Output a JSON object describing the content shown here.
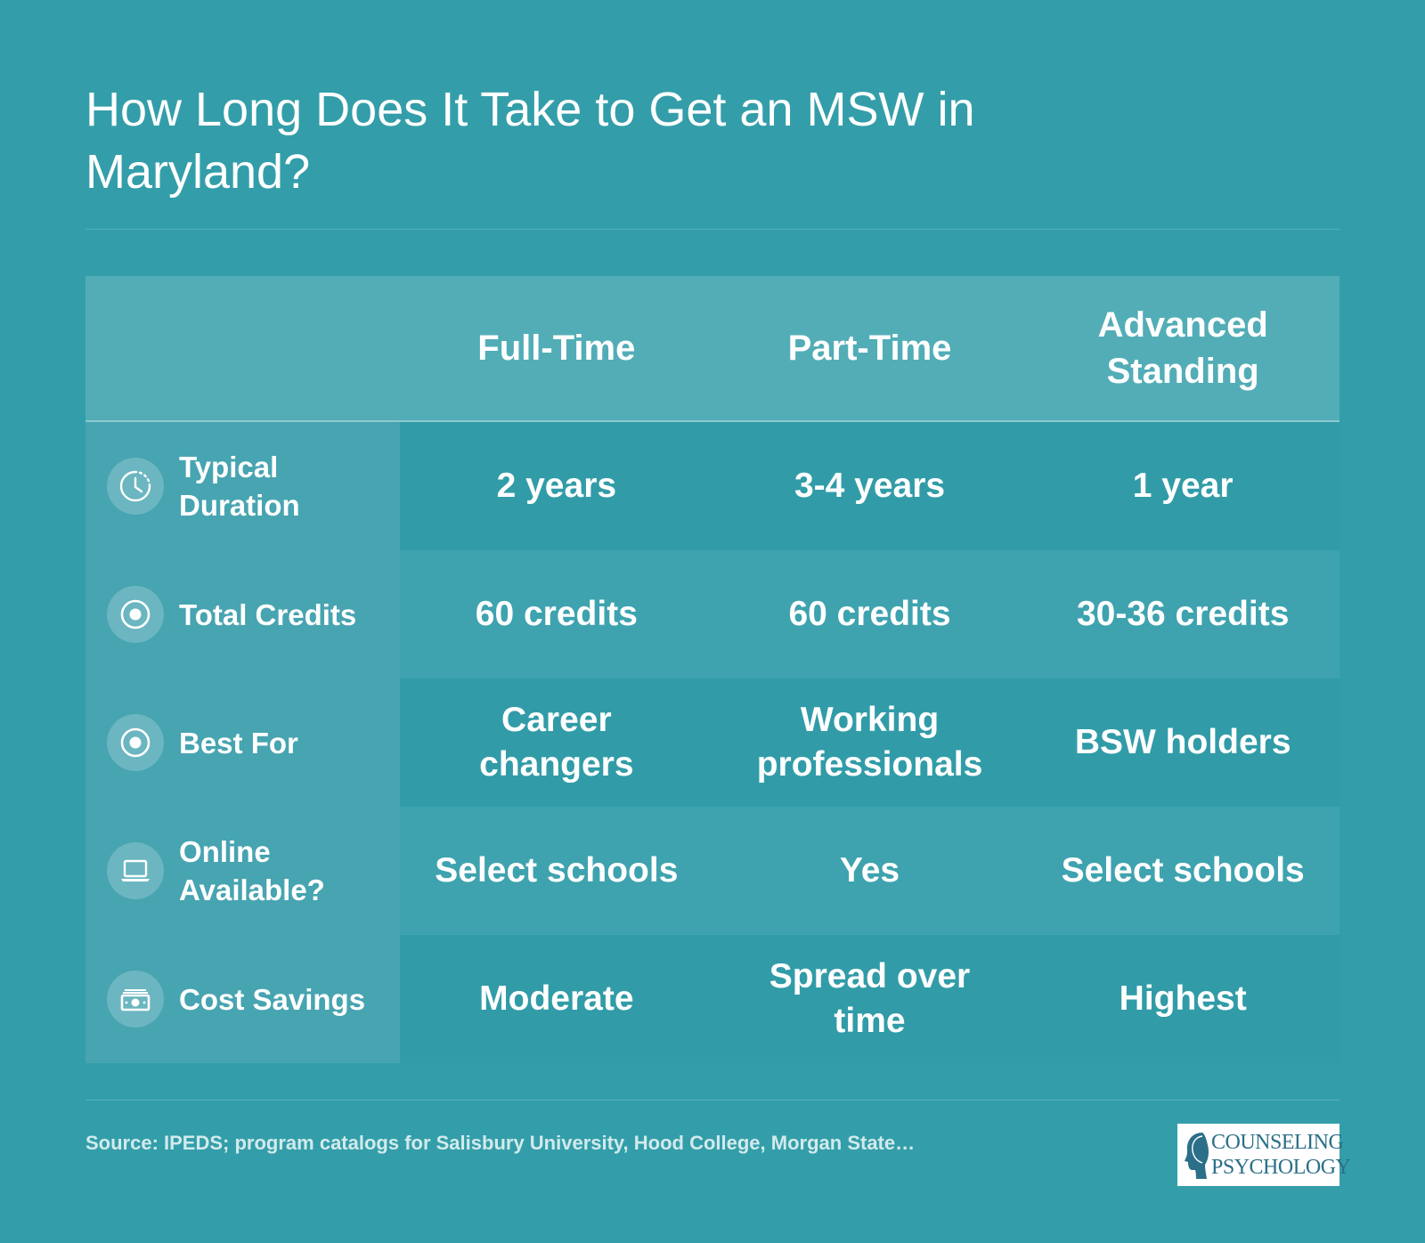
{
  "title": "How Long Does It Take to Get an MSW in Maryland?",
  "columns": [
    "Full-Time",
    "Part-Time",
    "Advanced Standing"
  ],
  "rows": [
    {
      "label": "Typical Duration",
      "icon": "clock-icon",
      "values": [
        "2 years",
        "3-4 years",
        "1 year"
      ]
    },
    {
      "label": "Total Credits",
      "icon": "target-icon",
      "values": [
        "60 credits",
        "60 credits",
        "30-36 credits"
      ]
    },
    {
      "label": "Best For",
      "icon": "target-icon",
      "values": [
        "Career changers",
        "Working professionals",
        "BSW holders"
      ]
    },
    {
      "label": "Online Available?",
      "icon": "laptop-icon",
      "values": [
        "Select schools",
        "Yes",
        "Select schools"
      ]
    },
    {
      "label": "Cost Savings",
      "icon": "money-icon",
      "values": [
        "Moderate",
        "Spread over time",
        "Highest"
      ]
    }
  ],
  "source": "Source: IPEDS; program catalogs for Salisbury University, Hood College, Morgan State…",
  "logo": {
    "line1": "COUNSELING",
    "line2": "PSYCHOLOGY"
  },
  "colors": {
    "background": "#339ea9",
    "header": "#52adb7",
    "label_column": "#47a4b1",
    "row_dark": "#319ca8",
    "row_light": "#3ea3af",
    "logo_text": "#2b6f88"
  }
}
